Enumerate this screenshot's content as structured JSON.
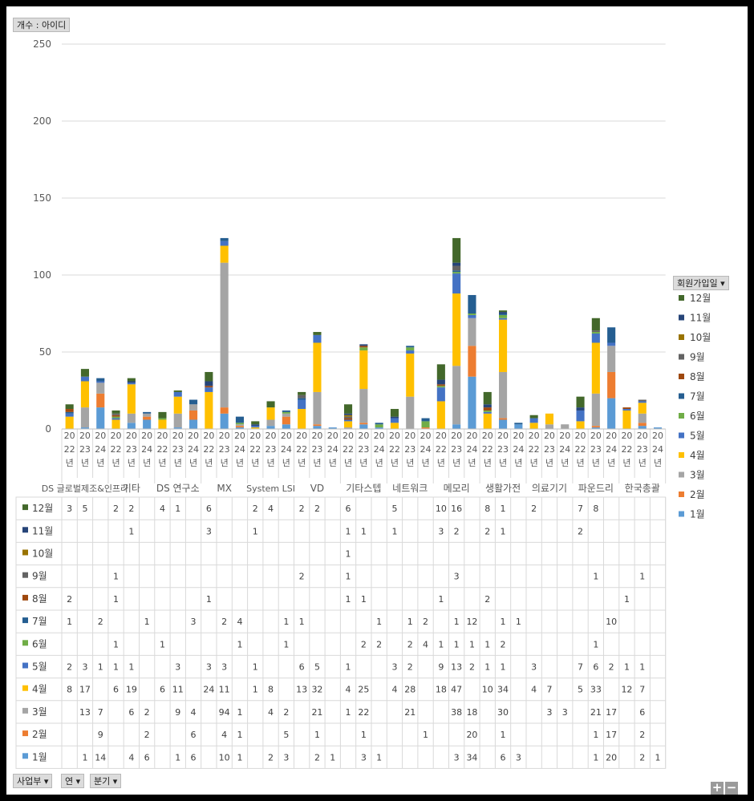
{
  "filters": {
    "value_field": "개수 : 아이디",
    "legend_field": "회원가입일",
    "row_fields": [
      "사업부",
      "연",
      "분기"
    ]
  },
  "chart_data": {
    "type": "bar",
    "stacked": true,
    "ylim": [
      0,
      250
    ],
    "yticks": [
      0,
      50,
      100,
      150,
      200,
      250
    ],
    "grid": true,
    "legend_position": "right",
    "series_order_stack": [
      "1월",
      "2월",
      "3월",
      "4월",
      "5월",
      "6월",
      "7월",
      "8월",
      "9월",
      "10월",
      "11월",
      "12월"
    ],
    "colors": {
      "1월": "#5b9bd5",
      "2월": "#ed7d31",
      "3월": "#a5a5a5",
      "4월": "#ffc000",
      "5월": "#4472c4",
      "6월": "#70ad47",
      "7월": "#255e91",
      "8월": "#9e480e",
      "9월": "#636363",
      "10월": "#997300",
      "11월": "#264478",
      "12월": "#43682b"
    },
    "groups": [
      {
        "name": "DS 글로벌제조&인프라",
        "years": [
          "2022년",
          "2023년",
          "2024년"
        ]
      },
      {
        "name": "기타",
        "years": [
          "2022년",
          "2023년",
          "2024년"
        ]
      },
      {
        "name": "DS 연구소",
        "years": [
          "2022년",
          "2023년",
          "2024년"
        ]
      },
      {
        "name": "MX",
        "years": [
          "2022년",
          "2023년",
          "2024년"
        ]
      },
      {
        "name": "System LSI",
        "years": [
          "2022년",
          "2023년",
          "2024년"
        ]
      },
      {
        "name": "VD",
        "years": [
          "2022년",
          "2023년",
          "2024년"
        ]
      },
      {
        "name": "기타스텝",
        "years": [
          "2022년",
          "2023년",
          "2024년"
        ]
      },
      {
        "name": "네트워크",
        "years": [
          "2022년",
          "2023년",
          "2024년"
        ]
      },
      {
        "name": "메모리",
        "years": [
          "2022년",
          "2023년",
          "2024년"
        ]
      },
      {
        "name": "생활가전",
        "years": [
          "2022년",
          "2023년",
          "2024년"
        ]
      },
      {
        "name": "의료기기",
        "years": [
          "2022년",
          "2023년",
          "2024년"
        ]
      },
      {
        "name": "파운드리",
        "years": [
          "2022년",
          "2023년",
          "2024년"
        ]
      },
      {
        "name": "한국총괄",
        "years": [
          "2022년",
          "2023년",
          "2024년"
        ]
      }
    ],
    "table_rows": [
      {
        "name": "12월",
        "values": [
          "3",
          "5",
          "",
          "2",
          "2",
          "",
          "4",
          "1",
          "",
          "6",
          "",
          "",
          "2",
          "4",
          "",
          "2",
          "2",
          "",
          "6",
          "",
          "",
          "5",
          "",
          "",
          "10",
          "16",
          "",
          "8",
          "1",
          "",
          "2",
          "",
          "",
          "7",
          "8",
          "",
          "",
          "",
          ""
        ]
      },
      {
        "name": "11월",
        "values": [
          "",
          "",
          "",
          "",
          "1",
          "",
          "",
          "",
          "",
          "3",
          "",
          "",
          "1",
          "",
          "",
          "",
          "",
          "",
          "1",
          "1",
          "",
          "1",
          "",
          "",
          "3",
          "2",
          "",
          "2",
          "1",
          "",
          "",
          "",
          "",
          "2",
          "",
          "",
          "",
          "",
          ""
        ]
      },
      {
        "name": "10월",
        "values": [
          "",
          "",
          "",
          "",
          "",
          "",
          "",
          "",
          "",
          "",
          "",
          "",
          "",
          "",
          "",
          "",
          "",
          "",
          "1",
          "",
          "",
          "",
          "",
          "",
          "",
          "",
          "",
          "",
          "",
          "",
          "",
          "",
          "",
          "",
          "",
          "",
          "",
          "",
          ""
        ]
      },
      {
        "name": "9월",
        "values": [
          "",
          "",
          "",
          "1",
          "",
          "",
          "",
          "",
          "",
          "",
          "",
          "",
          "",
          "",
          "",
          "2",
          "",
          "",
          "1",
          "",
          "",
          "",
          "",
          "",
          "",
          "3",
          "",
          "",
          "",
          "",
          "",
          "",
          "",
          "",
          "1",
          "",
          "",
          "1",
          ""
        ]
      },
      {
        "name": "8월",
        "values": [
          "2",
          "",
          "",
          "1",
          "",
          "",
          "",
          "",
          "",
          "1",
          "",
          "",
          "",
          "",
          "",
          "",
          "",
          "",
          "1",
          "1",
          "",
          "",
          "",
          "",
          "1",
          "",
          "",
          "2",
          "",
          "",
          "",
          "",
          "",
          "",
          "",
          "",
          "1",
          "",
          ""
        ]
      },
      {
        "name": "7월",
        "values": [
          "1",
          "",
          "2",
          "",
          "",
          "1",
          "",
          "",
          "3",
          "",
          "2",
          "4",
          "",
          "",
          "1",
          "1",
          "",
          "",
          "",
          "",
          "1",
          "",
          "1",
          "2",
          "",
          "1",
          "12",
          "",
          "1",
          "1",
          "",
          "",
          "",
          "",
          "",
          "10",
          "",
          "",
          ""
        ]
      },
      {
        "name": "6월",
        "values": [
          "",
          "",
          "",
          "1",
          "",
          "",
          "1",
          "",
          "",
          "",
          "",
          "1",
          "",
          "",
          "1",
          "",
          "",
          "",
          "",
          "2",
          "2",
          "",
          "2",
          "4",
          "1",
          "1",
          "1",
          "1",
          "2",
          "",
          "",
          "",
          "",
          "",
          "1",
          "",
          "",
          "",
          ""
        ]
      },
      {
        "name": "5월",
        "values": [
          "2",
          "3",
          "1",
          "1",
          "1",
          "",
          "",
          "3",
          "",
          "3",
          "3",
          "",
          "1",
          "",
          "",
          "6",
          "5",
          "",
          "1",
          "",
          "",
          "3",
          "2",
          "",
          "9",
          "13",
          "2",
          "1",
          "1",
          "",
          "3",
          "",
          "",
          "7",
          "6",
          "2",
          "1",
          "1",
          ""
        ]
      },
      {
        "name": "4월",
        "values": [
          "8",
          "17",
          "",
          "6",
          "19",
          "",
          "6",
          "11",
          "",
          "24",
          "11",
          "",
          "1",
          "8",
          "",
          "13",
          "32",
          "",
          "4",
          "25",
          "",
          "4",
          "28",
          "",
          "18",
          "47",
          "",
          "10",
          "34",
          "",
          "4",
          "7",
          "",
          "5",
          "33",
          "",
          "12",
          "7",
          ""
        ]
      },
      {
        "name": "3월",
        "values": [
          "",
          "13",
          "7",
          "",
          "6",
          "2",
          "",
          "9",
          "4",
          "",
          "94",
          "1",
          "",
          "4",
          "2",
          "",
          "21",
          "",
          "1",
          "22",
          "",
          "",
          "21",
          "",
          "",
          "38",
          "18",
          "",
          "30",
          "",
          "",
          "3",
          "3",
          "",
          "21",
          "17",
          "",
          "6",
          ""
        ]
      },
      {
        "name": "2월",
        "values": [
          "",
          "",
          "9",
          "",
          "",
          "2",
          "",
          "",
          "6",
          "",
          "4",
          "1",
          "",
          "",
          "5",
          "",
          "1",
          "",
          "",
          "1",
          "",
          "",
          "",
          "1",
          "",
          "",
          "20",
          "",
          "1",
          "",
          "",
          "",
          "",
          "",
          "1",
          "17",
          "",
          "2",
          ""
        ]
      },
      {
        "name": "1월",
        "values": [
          "",
          "1",
          "14",
          "",
          "4",
          "6",
          "",
          "1",
          "6",
          "",
          "10",
          "1",
          "",
          "2",
          "3",
          "",
          "2",
          "1",
          "",
          "3",
          "1",
          "",
          "",
          "",
          "",
          "3",
          "34",
          "",
          "6",
          "3",
          "",
          "",
          "",
          "",
          "1",
          "20",
          "",
          "2",
          "1"
        ]
      }
    ]
  }
}
